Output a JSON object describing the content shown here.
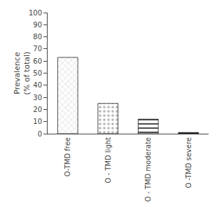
{
  "chart_data": {
    "type": "bar",
    "ylabel": "Prevalence\n(% of total)",
    "categories": [
      "O-TMD free",
      "O - TMD light",
      "O - TMD moderate",
      "O -TMD severe"
    ],
    "values": [
      63,
      25,
      12,
      1
    ],
    "colors": [
      "#e8e8e8",
      "#b8b8b8",
      "#383838",
      "#383838"
    ],
    "ylim": [
      0,
      100
    ],
    "yticks": [
      0,
      10,
      20,
      30,
      40,
      50,
      60,
      70,
      80,
      90,
      100
    ],
    "grid": false
  }
}
